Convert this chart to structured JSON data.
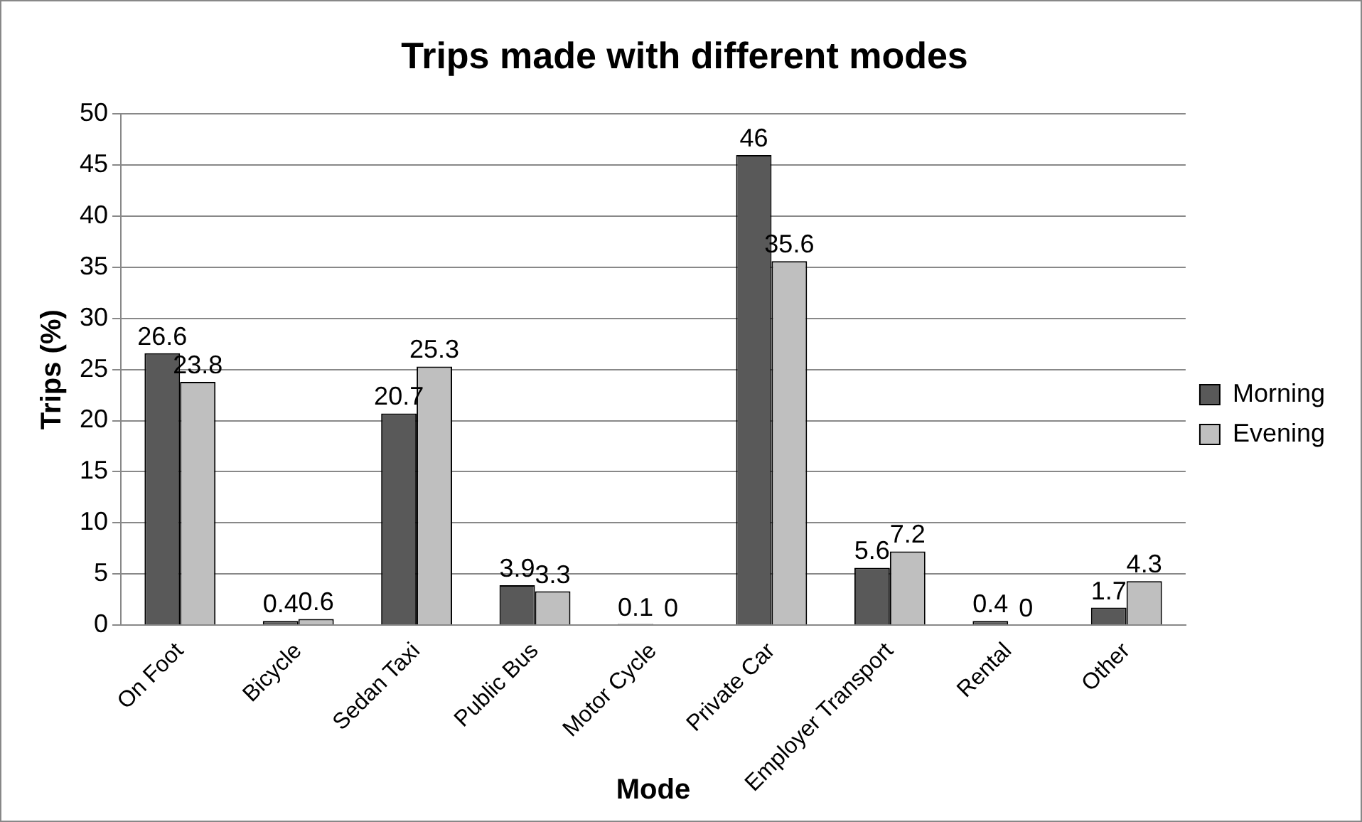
{
  "chart_data": {
    "type": "bar",
    "title": "Trips made with different modes",
    "xlabel": "Mode",
    "ylabel": "Trips (%)",
    "categories": [
      "On Foot",
      "Bicycle",
      "Sedan Taxi",
      "Public Bus",
      "Motor Cycle",
      "Private Car",
      "Employer Transport",
      "Rental",
      "Other"
    ],
    "series": [
      {
        "name": "Morning",
        "color": "#595959",
        "values": [
          26.6,
          0.4,
          20.7,
          3.9,
          0.1,
          46,
          5.6,
          0.4,
          1.7
        ]
      },
      {
        "name": "Evening",
        "color": "#bfbfbf",
        "values": [
          23.8,
          0.6,
          25.3,
          3.3,
          0,
          35.6,
          7.2,
          0,
          4.3
        ]
      }
    ],
    "ylim": [
      0,
      50
    ],
    "yticks": [
      0,
      5,
      10,
      15,
      20,
      25,
      30,
      35,
      40,
      45,
      50
    ],
    "grid": "y",
    "legend": "right",
    "data_labels": true
  }
}
